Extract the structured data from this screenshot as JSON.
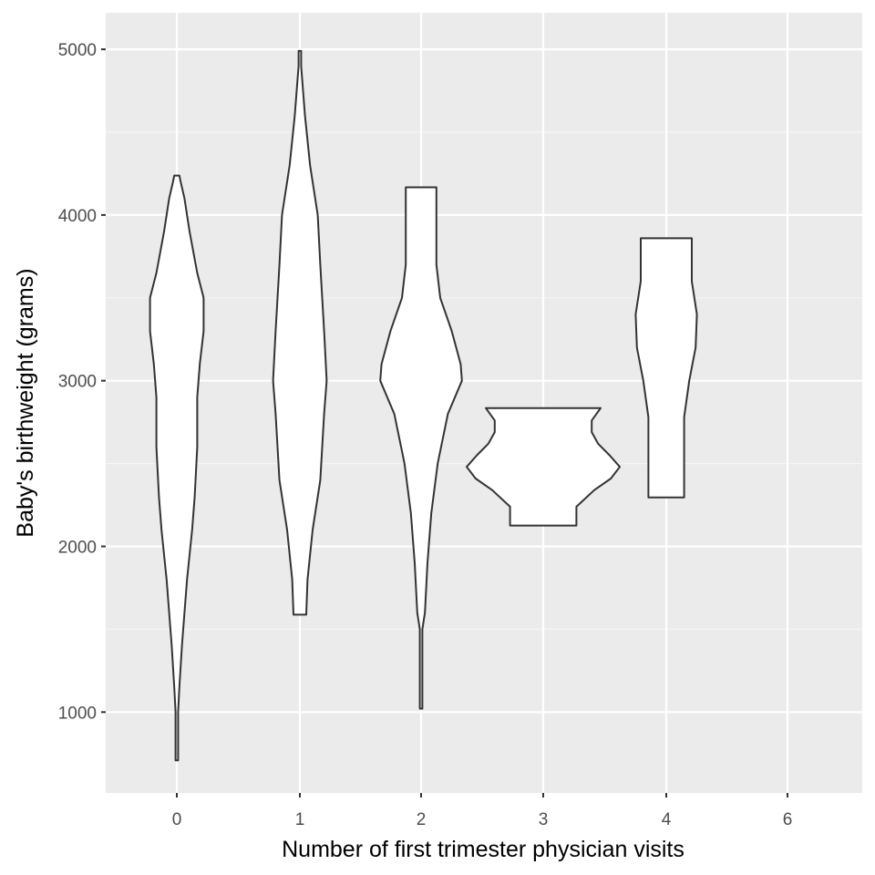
{
  "chart_data": {
    "type": "violin",
    "title": "",
    "xlabel": "Number of first trimester physician visits",
    "ylabel": "Baby's birthweight (grams)",
    "ylim": [
      500,
      5200
    ],
    "y_ticks": [
      1000,
      2000,
      3000,
      4000,
      5000
    ],
    "categories": [
      "0",
      "1",
      "2",
      "3",
      "4",
      "6"
    ],
    "grid": true,
    "legend": "none",
    "colors": {
      "panel_background": "#ebebeb",
      "grid_major": "#ffffff",
      "grid_minor": "#f5f5f5",
      "violin_fill": "#ffffff",
      "violin_outline": "#333333",
      "tick_label": "#4d4d4d",
      "axis_title": "#000000"
    },
    "violins": [
      {
        "category": "0",
        "min": 709,
        "max": 4238,
        "density_profile": [
          [
            709,
            0.01
          ],
          [
            1000,
            0.01
          ],
          [
            1150,
            0.02
          ],
          [
            1400,
            0.04
          ],
          [
            1800,
            0.08
          ],
          [
            2100,
            0.12
          ],
          [
            2300,
            0.14
          ],
          [
            2600,
            0.16
          ],
          [
            2900,
            0.16
          ],
          [
            3100,
            0.18
          ],
          [
            3300,
            0.21
          ],
          [
            3500,
            0.21
          ],
          [
            3650,
            0.16
          ],
          [
            3900,
            0.1
          ],
          [
            4100,
            0.06
          ],
          [
            4200,
            0.03
          ],
          [
            4238,
            0.02
          ]
        ]
      },
      {
        "category": "1",
        "min": 1588,
        "max": 4990,
        "density_profile": [
          [
            1588,
            0.05
          ],
          [
            1800,
            0.06
          ],
          [
            2100,
            0.1
          ],
          [
            2400,
            0.16
          ],
          [
            2800,
            0.19
          ],
          [
            3000,
            0.21
          ],
          [
            3300,
            0.19
          ],
          [
            3700,
            0.16
          ],
          [
            4000,
            0.14
          ],
          [
            4300,
            0.08
          ],
          [
            4600,
            0.04
          ],
          [
            4900,
            0.01
          ],
          [
            4990,
            0.01
          ]
        ]
      },
      {
        "category": "2",
        "min": 1021,
        "max": 4167,
        "density_profile": [
          [
            1021,
            0.01
          ],
          [
            1300,
            0.01
          ],
          [
            1500,
            0.01
          ],
          [
            1600,
            0.03
          ],
          [
            1900,
            0.05
          ],
          [
            2200,
            0.08
          ],
          [
            2500,
            0.13
          ],
          [
            2800,
            0.21
          ],
          [
            3000,
            0.32
          ],
          [
            3100,
            0.31
          ],
          [
            3300,
            0.24
          ],
          [
            3500,
            0.15
          ],
          [
            3700,
            0.12
          ],
          [
            3900,
            0.12
          ],
          [
            4100,
            0.12
          ],
          [
            4167,
            0.12
          ]
        ]
      },
      {
        "category": "3",
        "min": 2126,
        "max": 2835,
        "density_profile": [
          [
            2126,
            0.26
          ],
          [
            2240,
            0.26
          ],
          [
            2340,
            0.4
          ],
          [
            2410,
            0.53
          ],
          [
            2480,
            0.6
          ],
          [
            2550,
            0.52
          ],
          [
            2620,
            0.43
          ],
          [
            2690,
            0.38
          ],
          [
            2760,
            0.38
          ],
          [
            2835,
            0.45
          ]
        ]
      },
      {
        "category": "4",
        "min": 2296,
        "max": 3860,
        "density_profile": [
          [
            2296,
            0.14
          ],
          [
            2500,
            0.14
          ],
          [
            2780,
            0.14
          ],
          [
            3000,
            0.18
          ],
          [
            3200,
            0.23
          ],
          [
            3400,
            0.24
          ],
          [
            3600,
            0.2
          ],
          [
            3860,
            0.2
          ]
        ]
      }
    ]
  }
}
